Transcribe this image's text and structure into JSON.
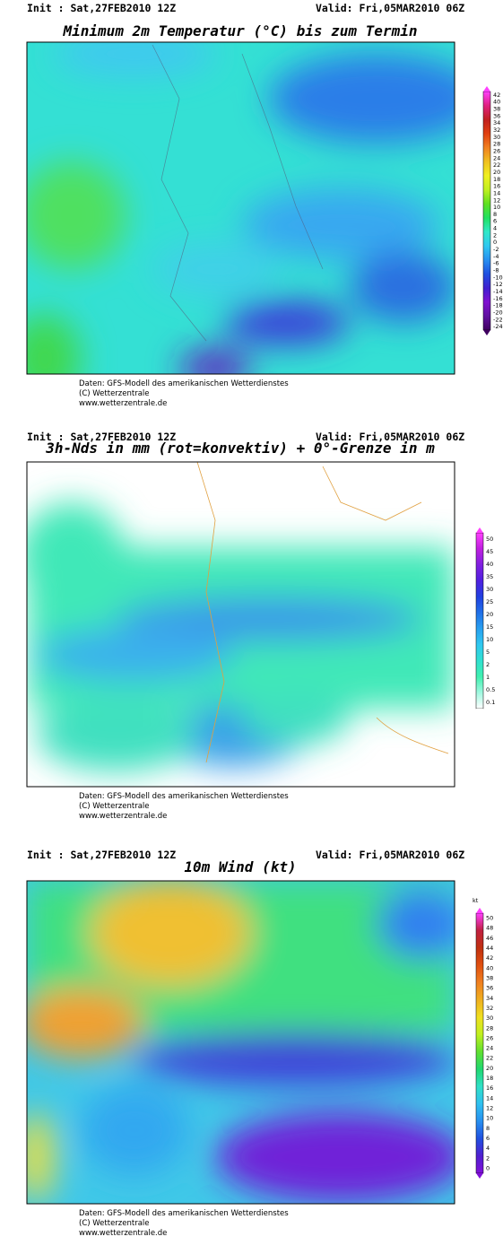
{
  "panels": [
    {
      "init": "Init : Sat,27FEB2010 12Z",
      "valid": "Valid: Fri,05MAR2010 06Z",
      "title": "Minimum 2m Temperatur (°C) bis zum Termin",
      "legend_labels": [
        "42",
        "40",
        "38",
        "36",
        "34",
        "32",
        "30",
        "28",
        "26",
        "24",
        "22",
        "20",
        "18",
        "16",
        "14",
        "12",
        "10",
        "8",
        "6",
        "4",
        "2",
        "0",
        "-2",
        "-4",
        "-6",
        "-8",
        "-10",
        "-12",
        "-14",
        "-16",
        "-18",
        "-20",
        "-22",
        "-24"
      ],
      "legend_colors": [
        "#ff40ff",
        "#e02080",
        "#c02020",
        "#e04010",
        "#f08020",
        "#f0c020",
        "#f0f020",
        "#c0f020",
        "#60e020",
        "#20e060",
        "#30e8c8",
        "#30c8f0",
        "#2890f0",
        "#2050e0",
        "#4020d0",
        "#8010d0",
        "#6010a0",
        "#400060"
      ],
      "credits": [
        "Daten: GFS-Modell des amerikanischen Wetterdienstes",
        "(C) Wetterzentrale",
        "www.wetterzentrale.de"
      ]
    },
    {
      "init": "Init : Sat,27FEB2010 12Z",
      "valid": "Valid: Fri,05MAR2010 06Z",
      "title": "3h-Nds in mm (rot=konvektiv) + 0°-Grenze in m",
      "legend_labels": [
        "50",
        "45",
        "40",
        "35",
        "30",
        "25",
        "20",
        "15",
        "10",
        "5",
        "2",
        "1",
        "0.5",
        "0.1"
      ],
      "legend_colors": [
        "#ff40ff",
        "#c020e0",
        "#8020e0",
        "#5020e0",
        "#2040e0",
        "#2070e8",
        "#28a0f0",
        "#30c8f0",
        "#30e0d0",
        "#40f0b0",
        "#a0f8e0",
        "#ffffff"
      ],
      "credits": [
        "Daten: GFS-Modell des amerikanischen Wetterdienstes",
        "(C) Wetterzentrale",
        "www.wetterzentrale.de"
      ]
    },
    {
      "init": "Init : Sat,27FEB2010 12Z",
      "valid": "Valid: Fri,05MAR2010 06Z",
      "title": "10m Wind (kt)",
      "legend_unit": "kt",
      "legend_labels": [
        "50",
        "48",
        "46",
        "44",
        "42",
        "40",
        "38",
        "36",
        "34",
        "32",
        "30",
        "28",
        "26",
        "24",
        "22",
        "20",
        "18",
        "16",
        "14",
        "12",
        "10",
        "8",
        "6",
        "4",
        "2",
        "0"
      ],
      "legend_colors": [
        "#ff40ff",
        "#c02040",
        "#c03010",
        "#e05010",
        "#f08020",
        "#f0b020",
        "#f0e020",
        "#c0f020",
        "#60e030",
        "#20d870",
        "#30e0c8",
        "#30c0f0",
        "#2890f0",
        "#2050e0",
        "#5020d0",
        "#8010d8"
      ],
      "credits": [
        "Daten: GFS-Modell des amerikanischen Wetterdienstes",
        "(C) Wetterzentrale",
        "www.wetterzentrale.de"
      ]
    }
  ]
}
